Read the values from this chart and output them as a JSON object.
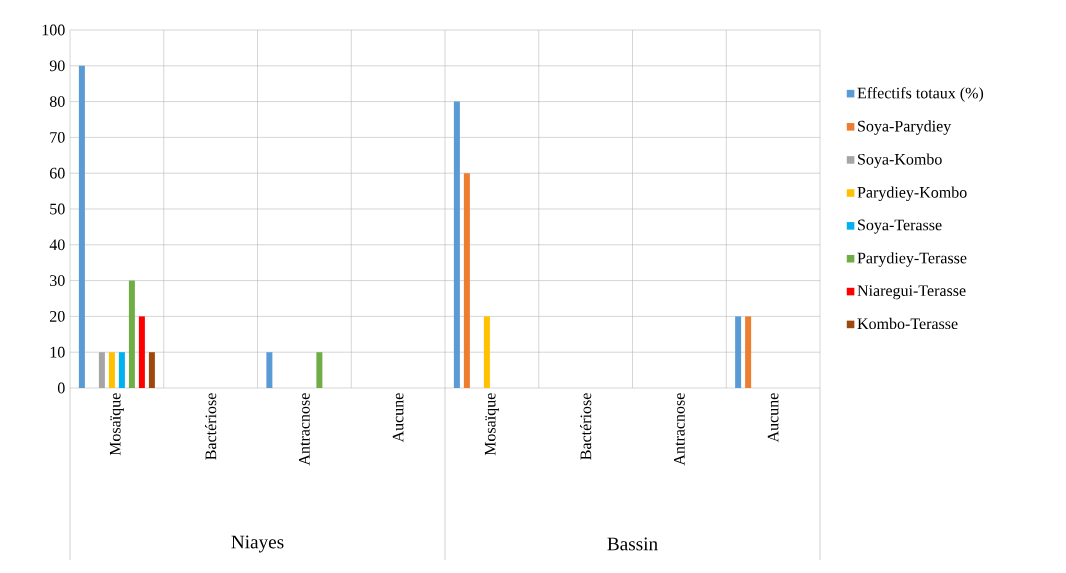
{
  "chart_data": {
    "type": "bar",
    "categories": [
      "Mosaïque",
      "Bactériose",
      "Antracnose",
      "Aucune",
      "Mosaïque",
      "Bactériose",
      "Antracnose",
      "Aucune"
    ],
    "series": [
      {
        "name": "Effectifs totaux (%)",
        "color": "#5b9bd5",
        "values": [
          90,
          0,
          10,
          0,
          80,
          0,
          0,
          20
        ]
      },
      {
        "name": "Soya-Parydiey",
        "color": "#ed7d31",
        "values": [
          0,
          0,
          0,
          0,
          60,
          0,
          0,
          20
        ]
      },
      {
        "name": "Soya-Kombo",
        "color": "#a5a5a5",
        "values": [
          10,
          0,
          0,
          0,
          0,
          0,
          0,
          0
        ]
      },
      {
        "name": "Parydiey-Kombo",
        "color": "#ffc000",
        "values": [
          10,
          0,
          0,
          0,
          20,
          0,
          0,
          0
        ]
      },
      {
        "name": "Soya-Terasse",
        "color": "#00b0f0",
        "values": [
          10,
          0,
          0,
          0,
          0,
          0,
          0,
          0
        ]
      },
      {
        "name": "Parydiey-Terasse",
        "color": "#70ad47",
        "values": [
          30,
          0,
          10,
          0,
          0,
          0,
          0,
          0
        ]
      },
      {
        "name": "Niaregui-Terasse",
        "color": "#ff0000",
        "values": [
          20,
          0,
          0,
          0,
          0,
          0,
          0,
          0
        ]
      },
      {
        "name": "Kombo-Terasse",
        "color": "#9e480e",
        "values": [
          10,
          0,
          0,
          0,
          0,
          0,
          0,
          0
        ]
      }
    ],
    "annotations": [
      "Niayes",
      "Bassin"
    ],
    "ylim": [
      0,
      100
    ],
    "yticks": [
      0,
      10,
      20,
      30,
      40,
      50,
      60,
      70,
      80,
      90,
      100
    ],
    "grid": true,
    "legend": "right"
  }
}
